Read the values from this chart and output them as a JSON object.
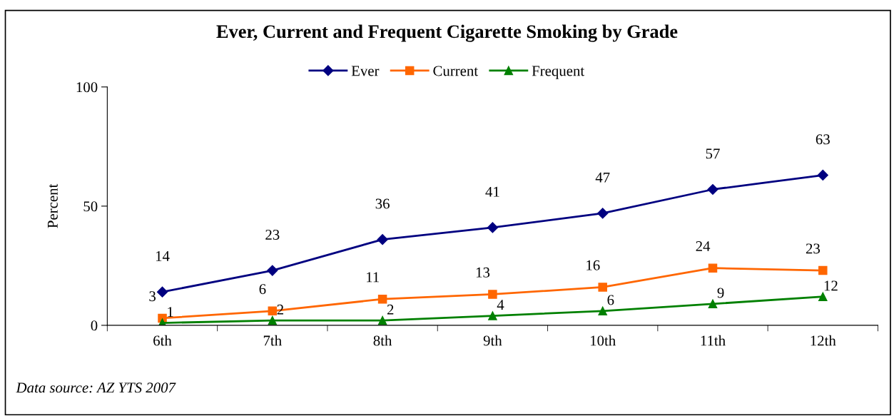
{
  "chart_data": {
    "type": "line",
    "title": "Ever, Current and Frequent Cigarette Smoking by Grade",
    "ylabel": "Percent",
    "categories": [
      "6th",
      "7th",
      "8th",
      "9th",
      "10th",
      "11th",
      "12th"
    ],
    "series": [
      {
        "name": "Ever",
        "color": "#000080",
        "marker": "diamond",
        "values": [
          14,
          23,
          36,
          41,
          47,
          57,
          63
        ]
      },
      {
        "name": "Current",
        "color": "#ff6600",
        "marker": "square",
        "values": [
          3,
          6,
          11,
          13,
          16,
          24,
          23
        ]
      },
      {
        "name": "Frequent",
        "color": "#008000",
        "marker": "triangle",
        "values": [
          1,
          2,
          2,
          4,
          6,
          9,
          12
        ]
      }
    ],
    "ylim": [
      0,
      100
    ],
    "yticks": [
      0,
      50,
      100
    ],
    "grid": false,
    "legend": "top",
    "data_labels": true,
    "line_style": "solid",
    "annotations": [
      "Data source: AZ YTS 2007"
    ]
  }
}
